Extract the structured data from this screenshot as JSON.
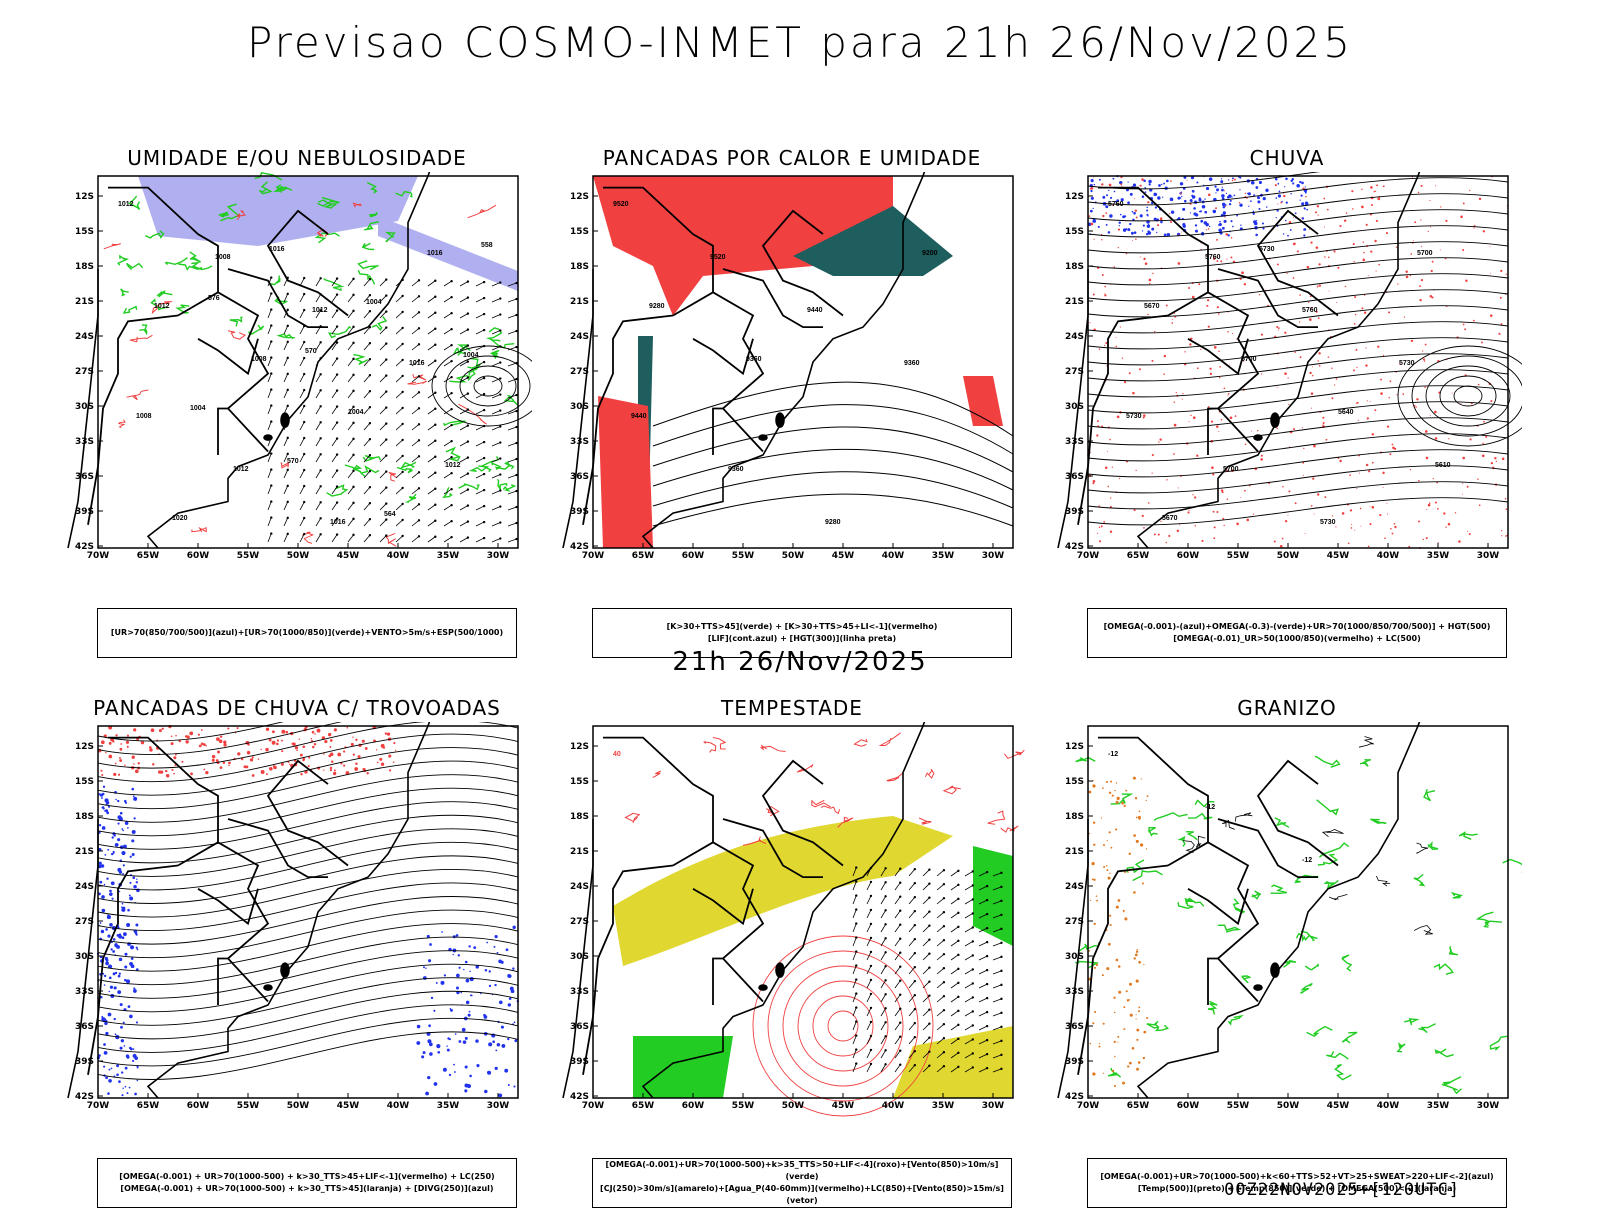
{
  "title": "Previsao COSMO-INMET  para 21h 26/Nov/2025",
  "subtitle": "21h 26/Nov/2025",
  "footer": "00Z22NOV2025+[120UTC]",
  "axes": {
    "lat_labels": [
      "12S",
      "15S",
      "18S",
      "21S",
      "24S",
      "27S",
      "30S",
      "33S",
      "36S",
      "39S",
      "42S"
    ],
    "lon_labels": [
      "70W",
      "65W",
      "60W",
      "55W",
      "50W",
      "45W",
      "40W",
      "35W",
      "30W"
    ]
  },
  "colors": {
    "red": "#f04040",
    "green": "#22cc22",
    "blue": "#2233ee",
    "lavender": "#b0b0f0",
    "teal": "#1e5e5e",
    "yellow": "#e0d830",
    "orange": "#e07820"
  },
  "panels": [
    {
      "title": "UMIDADE E/OU NEBULOSIDADE",
      "legend": [
        "[UR>70(850/700/500)](azul)+[UR>70(1000/850)](verde)+VENTO>5m/s+ESP(500/1000)"
      ],
      "labels": [
        "1012",
        "1008",
        "1012",
        "1016",
        "1008",
        "1012",
        "1016",
        "1016",
        "1012",
        "1008",
        "1004",
        "1012",
        "1020",
        "1016",
        "1004",
        "1004",
        "1004",
        "570",
        "564",
        "558",
        "576",
        "570"
      ]
    },
    {
      "title": "PANCADAS POR CALOR E UMIDADE",
      "legend": [
        "[K>30+TTS>45](verde) + [K>30+TTS>45+LI<-1](vermelho)",
        "[LIF](cont.azul) + [HGT(300)](linha preta)"
      ],
      "labels": [
        "9520",
        "9520",
        "9440",
        "9360",
        "9440",
        "9360",
        "9280",
        "9200",
        "9280",
        "9360"
      ]
    },
    {
      "title": "CHUVA",
      "legend": [
        "[OMEGA(-0.001)-(azul)+OMEGA(-0.3)-(verde)+UR>70(1000/850/700/500)] + HGT(500)",
        "[OMEGA(-0.01)_UR>50(1000/850)(vermelho) + LC(500)"
      ],
      "labels": [
        "5760",
        "5760",
        "5760",
        "5730",
        "5730",
        "5700",
        "5730",
        "5700",
        "5670",
        "5700",
        "5640",
        "5610",
        "5670",
        "5730"
      ]
    },
    {
      "title": "PANCADAS DE CHUVA C/ TROVOADAS",
      "legend": [
        "[OMEGA(-0.001) + UR>70(1000-500) + k>30_TTS>45+LIF<-1](vermelho) + LC(250)",
        "[OMEGA(-0.001) + UR>70(1000-500) + k>30_TTS>45](laranja) + [DIVG(250)](azul)"
      ],
      "labels": []
    },
    {
      "title": "TEMPESTADE",
      "legend": [
        "[OMEGA(-0.001)+UR>70(1000-500)+k>35_TTS>50+LIF<-4](roxo)+[Vento(850)>10m/s](verde)",
        "[CJ(250)>30m/s](amarelo)+[Agua_P(40-60mm)](vermelho)+LC(850)+[Vento(850)>15m/s](vetor)"
      ],
      "labels": [
        "40"
      ]
    },
    {
      "title": "GRANIZO",
      "legend": [
        "[OMEGA(-0.001)+UR>70(1000-500)+k<60+TTS>52+VT>25+SWEAT>220+LIF<-2](azul)",
        "[Temp(500)](preto) + [Temp(850)](verde) + [OMEGA(500)<-2](laranja)"
      ],
      "labels": [
        "-12",
        "-12",
        "-12"
      ]
    }
  ]
}
